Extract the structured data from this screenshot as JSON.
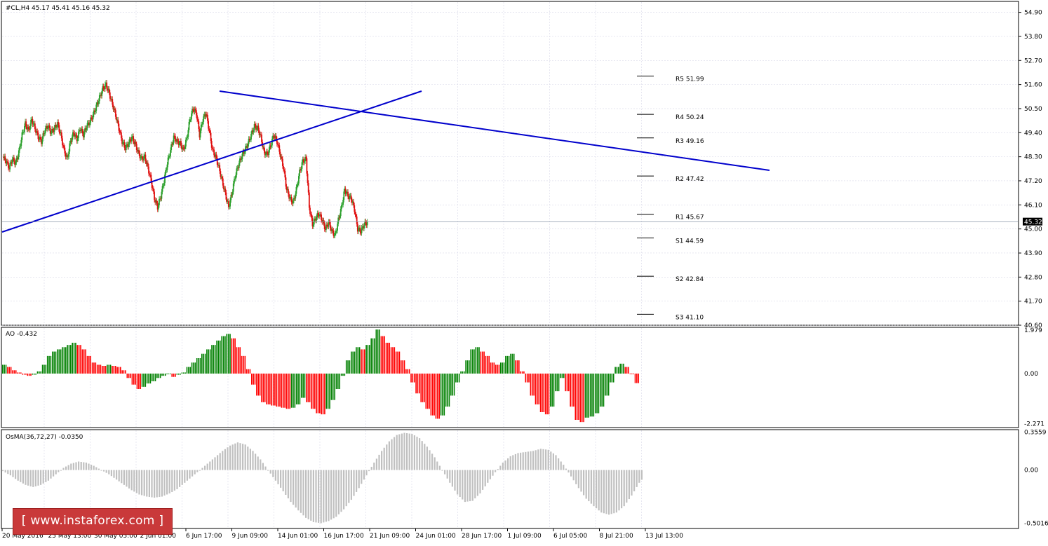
{
  "symbol_header": "#CL,H4  45.17 45.41 45.16 45.32",
  "last_price_label": "45.32",
  "colors": {
    "bull": "#2ca02c",
    "bear": "#e01010",
    "trendline": "#0000cc",
    "ao_up": "#008000",
    "ao_down": "#ff0000",
    "osma": "#c0c0c0",
    "grid": "#d8d8e8"
  },
  "chart_data": [
    {
      "type": "candlestick",
      "title": "#CL,H4",
      "ylim": [
        40.6,
        55.4
      ],
      "yticks": [
        "54.90",
        "53.80",
        "52.70",
        "51.60",
        "50.50",
        "49.40",
        "48.30",
        "47.20",
        "46.10",
        "45.00",
        "43.90",
        "42.80",
        "41.70",
        "40.60"
      ],
      "x_tick_labels": [
        "20 May 2016",
        "25 May 13:00",
        "30 May 05:00",
        "2 Jun 01:00",
        "6 Jun 17:00",
        "9 Jun 09:00",
        "14 Jun 01:00",
        "16 Jun 17:00",
        "21 Jun 09:00",
        "24 Jun 01:00",
        "28 Jun 17:00",
        "1 Jul 09:00",
        "6 Jul 05:00",
        "8 Jul 21:00",
        "13 Jul 13:00"
      ],
      "close_path": [
        48.3,
        48.1,
        47.8,
        48.2,
        48.0,
        48.5,
        49.3,
        49.8,
        49.5,
        50.0,
        49.6,
        49.2,
        49.0,
        49.5,
        49.7,
        49.4,
        49.6,
        49.8,
        49.3,
        48.6,
        48.2,
        49.0,
        49.4,
        49.1,
        49.6,
        49.3,
        49.7,
        49.9,
        50.2,
        50.6,
        51.0,
        51.4,
        51.6,
        51.2,
        50.7,
        50.2,
        49.6,
        49.0,
        48.7,
        48.9,
        49.2,
        48.9,
        48.5,
        48.2,
        48.3,
        47.8,
        47.2,
        46.4,
        46.0,
        46.5,
        47.2,
        48.0,
        48.6,
        49.2,
        49.0,
        48.9,
        48.6,
        49.1,
        50.0,
        50.5,
        50.3,
        49.3,
        50.0,
        50.3,
        49.5,
        48.6,
        48.3,
        47.8,
        47.2,
        46.6,
        46.0,
        46.6,
        47.4,
        47.9,
        48.3,
        48.6,
        48.9,
        49.3,
        49.7,
        49.6,
        49.2,
        48.5,
        48.4,
        48.8,
        49.3,
        49.0,
        48.4,
        47.8,
        46.8,
        46.4,
        46.2,
        46.8,
        47.6,
        48.1,
        48.2,
        46.0,
        45.2,
        45.5,
        45.7,
        45.4,
        45.0,
        45.3,
        44.9,
        44.7,
        45.4,
        46.0,
        46.8,
        46.5,
        46.4,
        45.9,
        45.0,
        44.9,
        45.2,
        45.32
      ],
      "pivots": [
        {
          "label": "R5 51.99",
          "value": 51.99
        },
        {
          "label": "R4 50.24",
          "value": 50.24
        },
        {
          "label": "R3 49.16",
          "value": 49.16
        },
        {
          "label": "R2 47.42",
          "value": 47.42
        },
        {
          "label": "R1 45.67",
          "value": 45.67
        },
        {
          "label": "S1 44.59",
          "value": 44.59
        },
        {
          "label": "S2 42.84",
          "value": 42.84
        },
        {
          "label": "S3 41.10",
          "value": 41.1
        }
      ],
      "trendlines": [
        {
          "from": [
            0,
            44.9
          ],
          "to": [
            137,
            51.7
          ]
        },
        {
          "from": [
            72,
            51.6
          ],
          "to": [
            250,
            48.0
          ]
        }
      ],
      "last_price": 45.32
    },
    {
      "type": "bar",
      "title": "AO -0.432",
      "ylim": [
        -2.45,
        2.1
      ],
      "yticks": [
        "1.979",
        "0.00",
        "-2.271"
      ],
      "values": [
        0.4,
        0.3,
        0.15,
        0.05,
        -0.05,
        -0.1,
        -0.05,
        0.1,
        0.4,
        0.8,
        1.0,
        1.1,
        1.2,
        1.3,
        1.4,
        1.3,
        1.1,
        0.8,
        0.5,
        0.4,
        0.35,
        0.4,
        0.35,
        0.3,
        0.15,
        -0.2,
        -0.5,
        -0.7,
        -0.6,
        -0.45,
        -0.35,
        -0.2,
        -0.1,
        0.0,
        -0.15,
        -0.05,
        0.05,
        0.3,
        0.5,
        0.7,
        0.9,
        1.1,
        1.3,
        1.5,
        1.7,
        1.8,
        1.6,
        1.2,
        0.8,
        0.2,
        -0.5,
        -1.0,
        -1.3,
        -1.4,
        -1.45,
        -1.5,
        -1.55,
        -1.6,
        -1.55,
        -1.4,
        -1.1,
        -1.3,
        -1.6,
        -1.8,
        -1.85,
        -1.6,
        -1.2,
        -0.7,
        -0.1,
        0.6,
        1.0,
        1.2,
        1.1,
        1.3,
        1.6,
        2.0,
        1.7,
        1.4,
        1.2,
        1.0,
        0.6,
        0.2,
        -0.4,
        -0.9,
        -1.3,
        -1.6,
        -1.9,
        -2.05,
        -1.9,
        -1.5,
        -1.0,
        -0.4,
        0.1,
        0.6,
        1.1,
        1.2,
        1.0,
        0.8,
        0.5,
        0.4,
        0.5,
        0.8,
        0.9,
        0.6,
        0.1,
        -0.4,
        -1.0,
        -1.4,
        -1.75,
        -1.85,
        -1.5,
        -0.8,
        -0.2,
        -0.8,
        -1.5,
        -2.1,
        -2.2,
        -2.0,
        -1.95,
        -1.8,
        -1.5,
        -1.0,
        -0.4,
        0.3,
        0.45,
        0.3,
        0.0,
        -0.432
      ]
    },
    {
      "type": "bar",
      "title": "OsMA(36,72,27) -0.0350",
      "ylim": [
        -0.55,
        0.38
      ],
      "yticks": [
        "0.3559",
        "0.00",
        "-0.5016"
      ],
      "values": [
        -0.01,
        -0.05,
        -0.1,
        -0.14,
        -0.16,
        -0.14,
        -0.1,
        -0.04,
        0.02,
        0.06,
        0.08,
        0.07,
        0.04,
        0.0,
        -0.04,
        -0.09,
        -0.14,
        -0.19,
        -0.23,
        -0.25,
        -0.26,
        -0.25,
        -0.22,
        -0.18,
        -0.12,
        -0.06,
        0.0,
        0.06,
        0.12,
        0.18,
        0.23,
        0.26,
        0.24,
        0.18,
        0.1,
        0.0,
        -0.1,
        -0.2,
        -0.3,
        -0.38,
        -0.45,
        -0.49,
        -0.5,
        -0.48,
        -0.44,
        -0.37,
        -0.28,
        -0.17,
        -0.05,
        0.07,
        0.18,
        0.27,
        0.33,
        0.35,
        0.34,
        0.3,
        0.22,
        0.12,
        0.0,
        -0.12,
        -0.23,
        -0.3,
        -0.29,
        -0.22,
        -0.12,
        -0.02,
        0.07,
        0.13,
        0.16,
        0.17,
        0.18,
        0.2,
        0.19,
        0.14,
        0.05,
        -0.06,
        -0.17,
        -0.27,
        -0.34,
        -0.4,
        -0.42,
        -0.4,
        -0.34,
        -0.24,
        -0.12,
        -0.035
      ]
    }
  ],
  "watermark": "[  www.instaforex.com  ]"
}
